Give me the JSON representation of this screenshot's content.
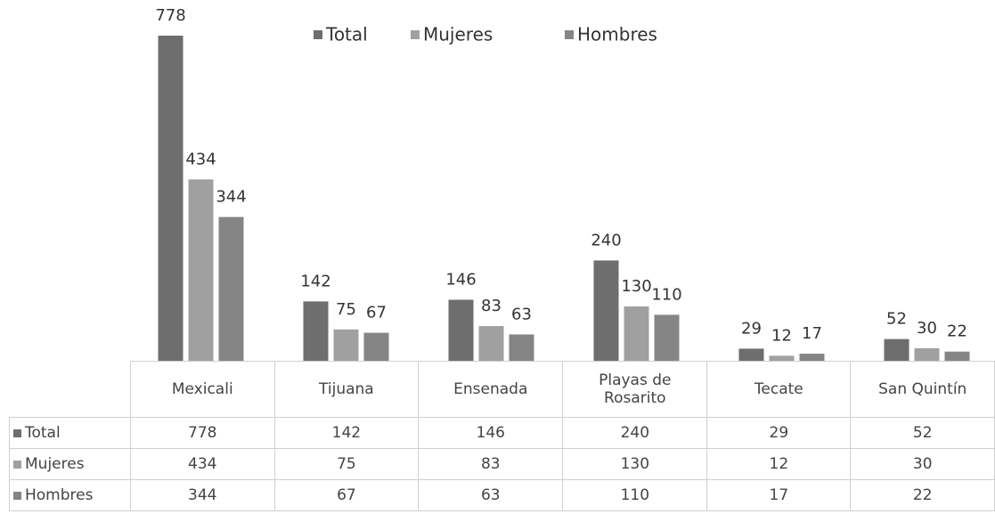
{
  "chart_data": {
    "type": "bar",
    "categories": [
      "Mexicali",
      "Tijuana",
      "Ensenada",
      "Playas de Rosarito",
      "Tecate",
      "San Quintín"
    ],
    "series": [
      {
        "name": "Total",
        "color": "#6e6e6e",
        "values": [
          778,
          142,
          146,
          240,
          29,
          52
        ]
      },
      {
        "name": "Mujeres",
        "color": "#a0a0a0",
        "values": [
          434,
          75,
          83,
          130,
          12,
          30
        ]
      },
      {
        "name": "Hombres",
        "color": "#858585",
        "values": [
          344,
          67,
          63,
          110,
          17,
          22
        ]
      }
    ],
    "legend": "top",
    "data_table": true
  }
}
